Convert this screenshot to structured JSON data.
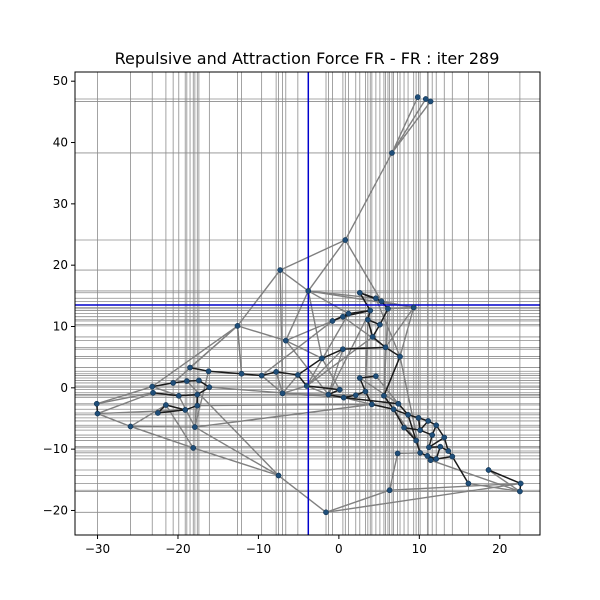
{
  "chart_data": {
    "type": "scatter",
    "title": "Repulsive and Attraction Force FR - FR : iter 289",
    "xlabel": "",
    "ylabel": "",
    "xlim": [
      -32.8,
      25.0
    ],
    "ylim": [
      -24.0,
      51.5
    ],
    "x_ticks": [
      -30,
      -20,
      -10,
      0,
      10,
      20
    ],
    "y_ticks": [
      -20,
      -10,
      0,
      10,
      20,
      30,
      40,
      50
    ],
    "x_tick_labels": [
      "−30",
      "−20",
      "−10",
      "0",
      "10",
      "20"
    ],
    "y_tick_labels": [
      "−20",
      "−10",
      "0",
      "10",
      "20",
      "30",
      "40",
      "50"
    ],
    "grid": false,
    "colors": {
      "node": "#1f4e79",
      "edge_light": "#808080",
      "edge_dark": "#1a1a1a",
      "guide_line": "#8c8c8c",
      "highlight_line": "#0000cc"
    },
    "highlight": {
      "x": -3.8,
      "y": 13.5
    },
    "nodes": [
      [
        9.8,
        47.4
      ],
      [
        10.8,
        47.1
      ],
      [
        11.4,
        46.7
      ],
      [
        6.6,
        38.3
      ],
      [
        0.8,
        24.1
      ],
      [
        -7.3,
        19.2
      ],
      [
        -3.8,
        15.8
      ],
      [
        4.6,
        14.6
      ],
      [
        2.6,
        15.5
      ],
      [
        5.3,
        14.1
      ],
      [
        9.3,
        13.1
      ],
      [
        6.1,
        12.9
      ],
      [
        3.9,
        12.6
      ],
      [
        1.2,
        12.1
      ],
      [
        0.5,
        11.6
      ],
      [
        -0.8,
        10.9
      ],
      [
        3.6,
        11.1
      ],
      [
        5.1,
        10.3
      ],
      [
        -12.6,
        10.1
      ],
      [
        -6.6,
        7.7
      ],
      [
        4.2,
        8.3
      ],
      [
        5.8,
        6.6
      ],
      [
        0.5,
        6.3
      ],
      [
        -2.1,
        4.8
      ],
      [
        7.6,
        5.1
      ],
      [
        -18.5,
        3.3
      ],
      [
        -16.2,
        2.7
      ],
      [
        -12.1,
        2.3
      ],
      [
        -9.6,
        2.0
      ],
      [
        -7.8,
        2.6
      ],
      [
        -5.1,
        2.1
      ],
      [
        -23.2,
        0.2
      ],
      [
        -20.6,
        0.8
      ],
      [
        -18.9,
        1.1
      ],
      [
        -17.4,
        1.2
      ],
      [
        -16.1,
        0.1
      ],
      [
        -4.0,
        0.3
      ],
      [
        0.1,
        -0.3
      ],
      [
        2.6,
        1.6
      ],
      [
        4.6,
        1.9
      ],
      [
        3.3,
        -0.6
      ],
      [
        -23.1,
        -0.8
      ],
      [
        -19.9,
        -1.3
      ],
      [
        -17.6,
        -1.1
      ],
      [
        -7.0,
        -0.9
      ],
      [
        -1.3,
        -1.1
      ],
      [
        0.6,
        -1.6
      ],
      [
        2.1,
        -1.2
      ],
      [
        5.6,
        -1.3
      ],
      [
        7.4,
        -2.6
      ],
      [
        -30.1,
        -2.6
      ],
      [
        -30.0,
        -4.2
      ],
      [
        -21.5,
        -2.8
      ],
      [
        -19.1,
        -3.6
      ],
      [
        -22.5,
        -4.1
      ],
      [
        -17.6,
        -2.9
      ],
      [
        4.1,
        -2.7
      ],
      [
        6.8,
        -3.5
      ],
      [
        8.6,
        -4.4
      ],
      [
        9.9,
        -4.9
      ],
      [
        11.1,
        -5.4
      ],
      [
        8.1,
        -6.5
      ],
      [
        10.1,
        -6.9
      ],
      [
        12.1,
        -6.1
      ],
      [
        11.6,
        -7.7
      ],
      [
        13.1,
        -8.1
      ],
      [
        9.6,
        -8.6
      ],
      [
        11.2,
        -9.7
      ],
      [
        12.6,
        -9.6
      ],
      [
        13.6,
        -10.3
      ],
      [
        10.1,
        -10.6
      ],
      [
        11.0,
        -11.1
      ],
      [
        12.1,
        -11.6
      ],
      [
        14.1,
        -11.2
      ],
      [
        7.3,
        -10.7
      ],
      [
        -25.9,
        -6.3
      ],
      [
        -17.9,
        -6.4
      ],
      [
        -18.1,
        -9.8
      ],
      [
        -7.5,
        -14.3
      ],
      [
        -1.6,
        -20.3
      ],
      [
        6.3,
        -16.7
      ],
      [
        16.1,
        -15.6
      ],
      [
        18.6,
        -13.4
      ],
      [
        22.6,
        -15.6
      ],
      [
        22.5,
        -16.9
      ],
      [
        11.4,
        -11.8
      ]
    ],
    "edges_light": [
      [
        0,
        3
      ],
      [
        1,
        3
      ],
      [
        2,
        3
      ],
      [
        3,
        4
      ],
      [
        4,
        5
      ],
      [
        4,
        6
      ],
      [
        4,
        9
      ],
      [
        5,
        18
      ],
      [
        5,
        6
      ],
      [
        5,
        44
      ],
      [
        6,
        10
      ],
      [
        6,
        7
      ],
      [
        6,
        23
      ],
      [
        6,
        19
      ],
      [
        18,
        19
      ],
      [
        18,
        25
      ],
      [
        18,
        31
      ],
      [
        19,
        45
      ],
      [
        19,
        23
      ],
      [
        22,
        36
      ],
      [
        36,
        44
      ],
      [
        44,
        28
      ],
      [
        45,
        37
      ],
      [
        50,
        31
      ],
      [
        50,
        41
      ],
      [
        51,
        41
      ],
      [
        51,
        53
      ],
      [
        75,
        51
      ],
      [
        75,
        52
      ],
      [
        75,
        77
      ],
      [
        75,
        76
      ],
      [
        77,
        78
      ],
      [
        78,
        79
      ],
      [
        79,
        80
      ],
      [
        80,
        83
      ],
      [
        79,
        83
      ],
      [
        81,
        84
      ],
      [
        82,
        84
      ],
      [
        76,
        56
      ],
      [
        77,
        52
      ],
      [
        80,
        74
      ],
      [
        84,
        85
      ],
      [
        74,
        70
      ],
      [
        10,
        21
      ],
      [
        10,
        24
      ],
      [
        24,
        70
      ],
      [
        7,
        24
      ],
      [
        21,
        48
      ],
      [
        12,
        45
      ],
      [
        15,
        19
      ],
      [
        23,
        37
      ],
      [
        39,
        49
      ],
      [
        36,
        45
      ],
      [
        30,
        44
      ],
      [
        29,
        44
      ],
      [
        18,
        27
      ],
      [
        26,
        76
      ],
      [
        10,
        11
      ],
      [
        9,
        10
      ],
      [
        33,
        78
      ],
      [
        43,
        76
      ],
      [
        42,
        76
      ],
      [
        44,
        47
      ],
      [
        14,
        21
      ],
      [
        16,
        40
      ],
      [
        13,
        36
      ],
      [
        20,
        36
      ],
      [
        28,
        15
      ],
      [
        27,
        18
      ],
      [
        31,
        42
      ],
      [
        32,
        18
      ],
      [
        6,
        13
      ],
      [
        22,
        45
      ],
      [
        38,
        49
      ],
      [
        8,
        12
      ],
      [
        11,
        48
      ],
      [
        40,
        46
      ],
      [
        46,
        56
      ],
      [
        57,
        66
      ],
      [
        48,
        57
      ],
      [
        55,
        56
      ],
      [
        35,
        46
      ],
      [
        76,
        78
      ]
    ],
    "edges_dark": [
      [
        14,
        15
      ],
      [
        15,
        13
      ],
      [
        13,
        12
      ],
      [
        12,
        16
      ],
      [
        16,
        17
      ],
      [
        17,
        11
      ],
      [
        11,
        9
      ],
      [
        9,
        7
      ],
      [
        7,
        8
      ],
      [
        8,
        12
      ],
      [
        16,
        20
      ],
      [
        20,
        21
      ],
      [
        21,
        24
      ],
      [
        24,
        48
      ],
      [
        48,
        57
      ],
      [
        57,
        58
      ],
      [
        58,
        59
      ],
      [
        59,
        60
      ],
      [
        60,
        63
      ],
      [
        63,
        65
      ],
      [
        65,
        69
      ],
      [
        69,
        73
      ],
      [
        73,
        72
      ],
      [
        72,
        71
      ],
      [
        71,
        70
      ],
      [
        70,
        66
      ],
      [
        66,
        61
      ],
      [
        61,
        62
      ],
      [
        62,
        64
      ],
      [
        64,
        67
      ],
      [
        67,
        68
      ],
      [
        68,
        72
      ],
      [
        62,
        59
      ],
      [
        64,
        63
      ],
      [
        67,
        65
      ],
      [
        66,
        58
      ],
      [
        61,
        57
      ],
      [
        68,
        69
      ],
      [
        60,
        62
      ],
      [
        25,
        26
      ],
      [
        26,
        27
      ],
      [
        27,
        28
      ],
      [
        28,
        29
      ],
      [
        29,
        30
      ],
      [
        30,
        36
      ],
      [
        36,
        37
      ],
      [
        37,
        45
      ],
      [
        45,
        46
      ],
      [
        46,
        47
      ],
      [
        47,
        40
      ],
      [
        40,
        56
      ],
      [
        56,
        57
      ],
      [
        39,
        38
      ],
      [
        38,
        40
      ],
      [
        31,
        32
      ],
      [
        32,
        33
      ],
      [
        33,
        34
      ],
      [
        34,
        35
      ],
      [
        41,
        42
      ],
      [
        42,
        43
      ],
      [
        43,
        35
      ],
      [
        52,
        53
      ],
      [
        53,
        54
      ],
      [
        54,
        52
      ],
      [
        55,
        53
      ],
      [
        55,
        43
      ],
      [
        49,
        58
      ],
      [
        50,
        51
      ],
      [
        22,
        23
      ],
      [
        23,
        30
      ],
      [
        22,
        21
      ],
      [
        17,
        20
      ],
      [
        85,
        71
      ],
      [
        85,
        72
      ],
      [
        82,
        83
      ],
      [
        83,
        84
      ],
      [
        81,
        73
      ],
      [
        12,
        14
      ],
      [
        8,
        9
      ],
      [
        46,
        49
      ]
    ],
    "guide_x": [
      -30.0,
      -25.9,
      -23.2,
      -21.5,
      -20.6,
      -19.9,
      -19.1,
      -18.9,
      -18.5,
      -18.1,
      -17.9,
      -17.6,
      -17.4,
      -16.1,
      -12.6,
      -12.1,
      -9.6,
      -7.8,
      -7.5,
      -7.0,
      -6.6,
      -5.1,
      -1.6,
      -1.3,
      -0.8,
      0.5,
      0.8,
      1.2,
      2.1,
      2.6,
      3.3,
      3.6,
      3.9,
      4.1,
      4.6,
      5.1,
      5.6,
      5.8,
      6.1,
      6.3,
      6.6,
      6.8,
      7.3,
      7.6,
      8.1,
      8.6,
      9.3,
      9.6,
      9.9,
      10.1,
      11.0,
      11.1,
      11.6,
      12.1,
      13.1,
      14.1,
      16.1,
      18.6,
      22.5
    ],
    "guide_y": [
      47.1,
      46.7,
      38.3,
      24.1,
      19.2,
      15.8,
      15.5,
      14.6,
      14.1,
      13.1,
      12.9,
      12.6,
      12.1,
      11.6,
      11.1,
      10.9,
      10.3,
      10.1,
      8.3,
      7.7,
      6.6,
      6.3,
      5.1,
      4.8,
      3.3,
      2.7,
      2.3,
      2.0,
      1.6,
      1.2,
      0.8,
      0.3,
      0.1,
      -0.3,
      -0.8,
      -1.1,
      -1.3,
      -1.6,
      -2.6,
      -2.8,
      -3.5,
      -4.1,
      -4.4,
      -4.9,
      -5.4,
      -6.1,
      -6.4,
      -6.9,
      -7.7,
      -8.1,
      -8.6,
      -9.6,
      -9.8,
      -10.3,
      -10.6,
      -11.1,
      -11.6,
      -13.4,
      -14.3,
      -15.6,
      -16.7,
      -16.9,
      -20.3
    ]
  }
}
